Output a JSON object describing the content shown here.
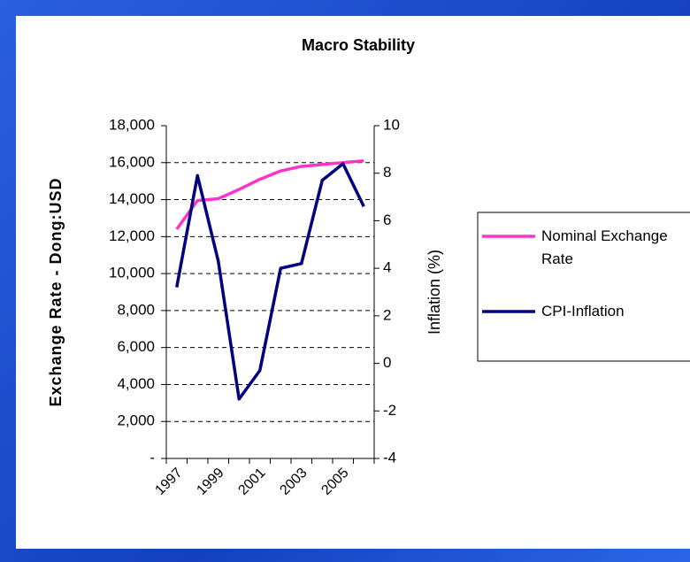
{
  "chart_data": {
    "type": "line",
    "title": "Macro Stability",
    "categories": [
      "1997",
      null,
      "1999",
      null,
      "2001",
      null,
      "2003",
      null,
      "2005",
      null
    ],
    "ylabel": "Exchange Rate - Dong:USD",
    "y2label": "Inflation (%)",
    "ylim": [
      0,
      18000
    ],
    "yticks": [
      {
        "value": 0,
        "label": "-"
      },
      {
        "value": 2000,
        "label": "2,000"
      },
      {
        "value": 4000,
        "label": "4,000"
      },
      {
        "value": 6000,
        "label": "6,000"
      },
      {
        "value": 8000,
        "label": "8,000"
      },
      {
        "value": 10000,
        "label": "10,000"
      },
      {
        "value": 12000,
        "label": "12,000"
      },
      {
        "value": 14000,
        "label": "14,000"
      },
      {
        "value": 16000,
        "label": "16,000"
      },
      {
        "value": 18000,
        "label": "18,000"
      }
    ],
    "y2lim": [
      -4,
      10
    ],
    "y2ticks": [
      -4,
      -2,
      0,
      2,
      4,
      6,
      8,
      10
    ],
    "grid": true,
    "legend": "right",
    "series": [
      {
        "name": "Nominal Exchange Rate",
        "color": "#ff33cc",
        "values": [
          12400,
          13950,
          14050,
          14550,
          15100,
          15550,
          15800,
          15900,
          16000,
          16100
        ]
      },
      {
        "name": "CPI-Inflation",
        "color": "#000080",
        "axis": "y2",
        "values": [
          3.2,
          7.9,
          4.3,
          -1.5,
          -0.3,
          4.0,
          4.2,
          7.7,
          8.4,
          6.6
        ]
      }
    ]
  }
}
